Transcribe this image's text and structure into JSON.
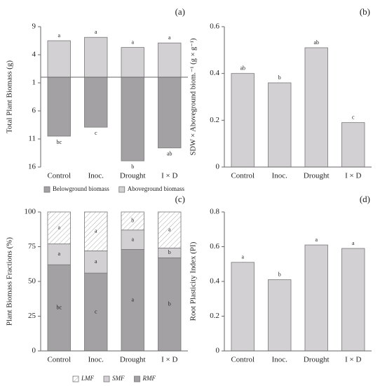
{
  "chart_data": [
    {
      "type": "bar",
      "stacked": true,
      "panel_label": "(a)",
      "ylabel": "Total Plant  Biomass (g)",
      "categories": [
        "Control",
        "Inoc.",
        "Drought",
        "I × D"
      ],
      "ylim": [
        -16,
        9
      ],
      "yticks": [
        9,
        4,
        {
          "value": -1,
          "label": "1"
        },
        {
          "value": -6,
          "label": "6"
        },
        {
          "value": -11,
          "label": "11"
        },
        {
          "value": -16,
          "label": "16"
        }
      ],
      "letter_position": "outside",
      "series": [
        {
          "name": "Aboveground biomass",
          "color": "#d3d0d3",
          "values": [
            6.5,
            7.1,
            5.3,
            6.1
          ],
          "letters": [
            "a",
            "a",
            "a",
            "a"
          ]
        },
        {
          "name": "Belowground biomass",
          "color": "#a3a1a3",
          "values": [
            -10.5,
            -8.9,
            -14.9,
            -12.6
          ],
          "letters": [
            "bc",
            "c",
            "b",
            "ab"
          ]
        }
      ]
    },
    {
      "type": "bar",
      "panel_label": "(b)",
      "ylabel": "SDW × Aboveground biom.⁻¹ (g × g⁻¹)",
      "categories": [
        "Control",
        "Inoc.",
        "Drought",
        "I × D"
      ],
      "ylim": [
        0,
        0.6
      ],
      "yticks": [
        0,
        0.2,
        0.4,
        0.6
      ],
      "letter_position": "outside",
      "color": "#d3d0d3",
      "values": [
        0.4,
        0.36,
        0.51,
        0.19
      ],
      "letters": [
        "ab",
        "b",
        "ab",
        "c"
      ]
    },
    {
      "type": "bar",
      "stacked": true,
      "panel_label": "(c)",
      "ylabel": "Plant Biomass Fractions (%)",
      "categories": [
        "Control",
        "Inoc.",
        "Drought",
        "I × D"
      ],
      "ylim": [
        0,
        100
      ],
      "yticks": [
        0,
        25,
        50,
        75,
        100
      ],
      "letter_position": "inside",
      "legend_italic": true,
      "series": [
        {
          "name": "RMF",
          "color": "#a3a1a3",
          "values": [
            62,
            56,
            73,
            67
          ],
          "letters": [
            "bc",
            "c",
            "a",
            "b"
          ]
        },
        {
          "name": "SMF",
          "color": "#d3d0d3",
          "values": [
            15,
            16,
            14,
            7
          ],
          "letters": [
            "a",
            "a",
            "a",
            "b"
          ]
        },
        {
          "name": "LMF",
          "color": "#ffffff",
          "pattern": "hatch",
          "values": [
            23,
            28,
            13,
            26
          ],
          "letters": [
            "a",
            "a",
            "b",
            "a"
          ]
        }
      ]
    },
    {
      "type": "bar",
      "panel_label": "(d)",
      "ylabel": "Root  Plasticity Index (PI)",
      "categories": [
        "Control",
        "Inoc.",
        "Drought",
        "I × D"
      ],
      "ylim": [
        0,
        0.8
      ],
      "yticks": [
        0,
        0.2,
        0.4,
        0.6,
        0.8
      ],
      "letter_position": "outside",
      "color": "#d3d0d3",
      "values": [
        0.51,
        0.41,
        0.61,
        0.59
      ],
      "letters": [
        "a",
        "b",
        "a",
        "a"
      ]
    }
  ]
}
